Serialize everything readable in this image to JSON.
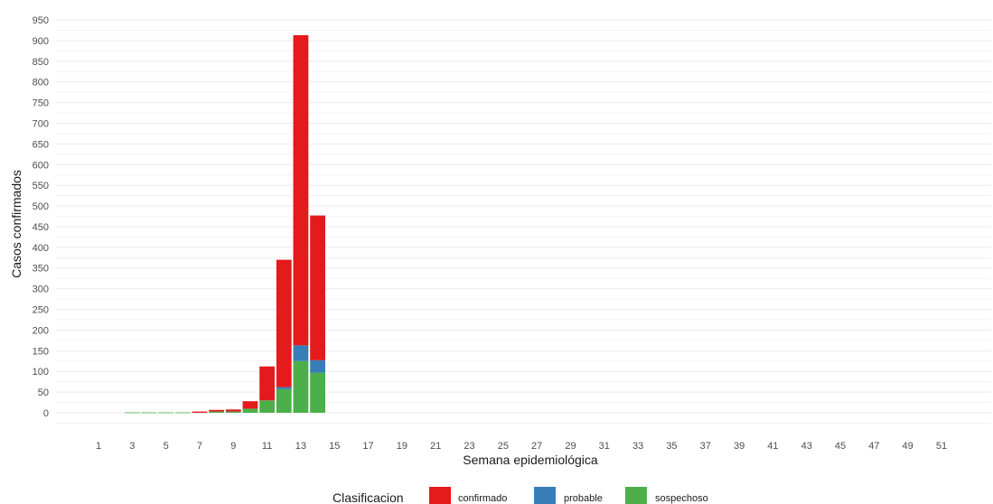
{
  "chart_data": {
    "type": "bar",
    "stacked": true,
    "xlabel": "Semana epidemiológica",
    "ylabel": "Casos confirmados",
    "ylim": [
      -20,
      960
    ],
    "y_ticks": [
      0,
      50,
      100,
      150,
      200,
      250,
      300,
      350,
      400,
      450,
      500,
      550,
      600,
      650,
      700,
      750,
      800,
      850,
      900,
      950
    ],
    "x_range": [
      0,
      53
    ],
    "x_ticks": [
      1,
      3,
      5,
      7,
      9,
      11,
      13,
      15,
      17,
      19,
      21,
      23,
      25,
      27,
      29,
      31,
      33,
      35,
      37,
      39,
      41,
      43,
      45,
      47,
      49,
      51
    ],
    "grid": true,
    "legend": {
      "title": "Clasificacion",
      "position": "bottom"
    },
    "x": [
      3,
      4,
      5,
      6,
      7,
      8,
      9,
      10,
      11,
      12,
      13,
      14
    ],
    "series": [
      {
        "name": "sospechoso",
        "color": "#4daf4a",
        "values": [
          1,
          1,
          1,
          1,
          0,
          3,
          3,
          10,
          30,
          57,
          125,
          97
        ]
      },
      {
        "name": "probable",
        "color": "#377eb8",
        "values": [
          0,
          0,
          0,
          0,
          0,
          0,
          0,
          0,
          0,
          5,
          38,
          30
        ]
      },
      {
        "name": "confirmado",
        "color": "#e41a1c",
        "values": [
          0,
          0,
          0,
          0,
          3,
          4,
          5,
          18,
          82,
          308,
          750,
          350
        ]
      }
    ],
    "legend_order": [
      "confirmado",
      "probable",
      "sospechoso"
    ]
  }
}
